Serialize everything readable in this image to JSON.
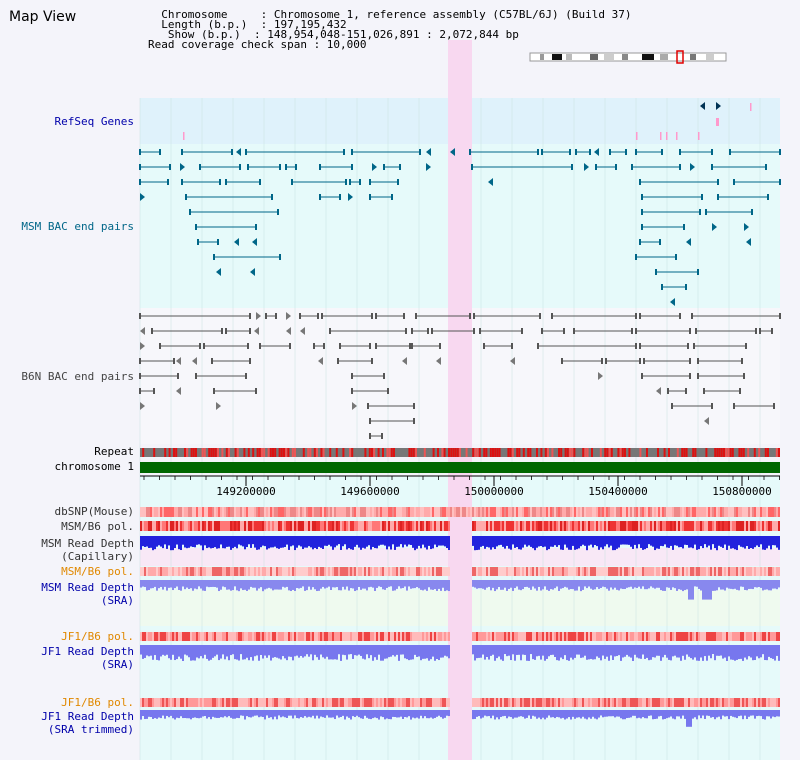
{
  "title": "Map View",
  "info": {
    "lines": [
      "  Chromosome     : Chromosome 1, reference assembly (C57BL/6J) (Build 37)",
      "  Length (b.p.)  : 197,195,432",
      "   Show (b.p.)  : 148,954,048-151,026,891 : 2,072,844 bp",
      "Read coverage check span : 10,000"
    ]
  },
  "tracks": {
    "refseq": "RefSeq Genes",
    "msm_bac": "MSM BAC end pairs",
    "b6n_bac": "B6N BAC end pairs",
    "repeat": "Repeat",
    "chromosome": "chromosome 1",
    "dbsnp": "dbSNP(Mouse)",
    "msm_b6_pol_1": "MSM/B6 pol.",
    "msm_read_depth_cap_1": "MSM Read Depth",
    "msm_read_depth_cap_2": "(Capillary)",
    "msm_b6_pol_2": "MSM/B6 pol.",
    "msm_read_depth_sra_1": "MSM Read Depth",
    "msm_read_depth_sra_2": "(SRA)",
    "jf1_b6_pol_1": "JF1/B6 pol.",
    "jf1_read_depth_sra_1": "JF1 Read Depth",
    "jf1_read_depth_sra_2": "(SRA)",
    "jf1_b6_pol_2": "JF1/B6 pol.",
    "jf1_read_depth_trim_1": "JF1 Read Depth",
    "jf1_read_depth_trim_2": "(SRA trimmed)"
  },
  "axis": {
    "ticks": [
      "149200000",
      "149600000",
      "150000000",
      "150400000",
      "150800000"
    ]
  },
  "colors": {
    "blue_label": "#0000aa",
    "teal_label": "#006688",
    "orange_label": "#e08800",
    "highlight": "#f8d8f0",
    "chromosome_bar": "#006600"
  }
}
